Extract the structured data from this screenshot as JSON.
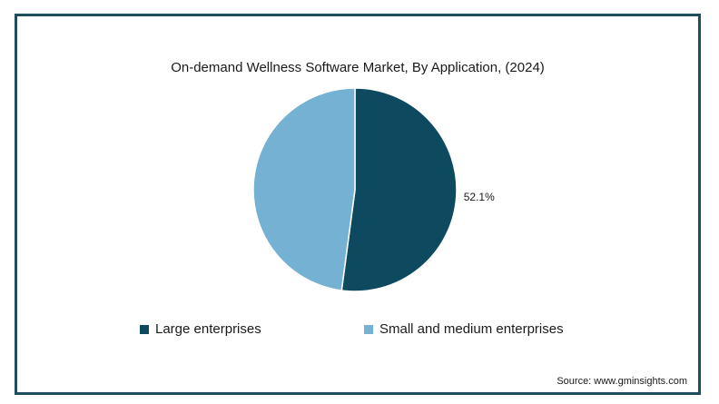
{
  "chart_data": {
    "type": "pie",
    "title": "On-demand Wellness Software Market, By Application, (2024)",
    "slices": [
      {
        "name": "Large enterprises",
        "value": 52.1,
        "label": "52.1%",
        "color": "#0e4a5f"
      },
      {
        "name": "Small and medium enterprises",
        "value": 47.9,
        "label": "",
        "color": "#75b1d2"
      }
    ],
    "start_angle_deg": 0,
    "direction": "clockwise",
    "legend_position": "bottom"
  },
  "source": "Source: www.gminsights.com"
}
